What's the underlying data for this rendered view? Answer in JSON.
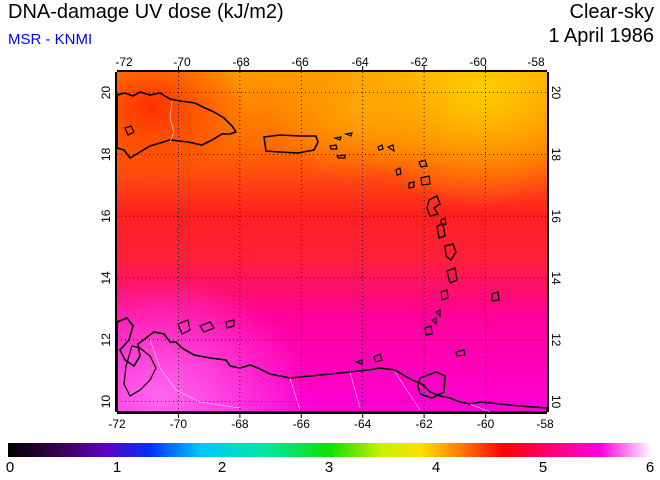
{
  "header": {
    "title": "DNA-damage UV dose (kJ/m2)",
    "source": "MSR - KNMI",
    "condition": "Clear-sky",
    "date": "1 April 1986"
  },
  "map": {
    "lon_range": [
      -72,
      -58
    ],
    "lat_range": [
      9.5,
      20.5
    ],
    "lon_ticks": [
      "-72",
      "-70",
      "-68",
      "-66",
      "-64",
      "-62",
      "-60",
      "-58"
    ],
    "lat_ticks": [
      "10",
      "12",
      "14",
      "16",
      "18",
      "20"
    ],
    "grid": "dotted 2-degree graticule",
    "colors": {
      "north_orange": "#ff7a00",
      "band_red": "#ff1a1a",
      "south_magenta": "#ff00cc",
      "coastline": "#000000",
      "borders": "#cccccc"
    },
    "regions": [
      "Hispaniola",
      "Puerto Rico",
      "Lesser Antilles",
      "Venezuela coast",
      "Trinidad"
    ]
  },
  "colorbar": {
    "min": 0,
    "max": 6,
    "labels": [
      "0",
      "1",
      "2",
      "3",
      "4",
      "5",
      "6"
    ],
    "scale": "black-purple-blue-cyan-green-yellow-orange-red-magenta-white"
  }
}
